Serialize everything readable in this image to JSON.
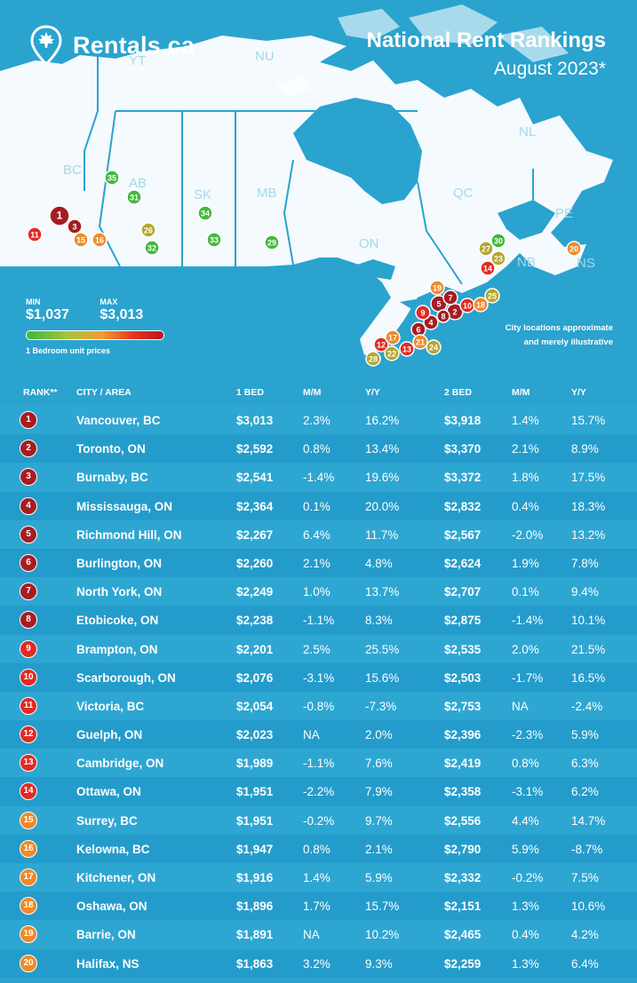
{
  "brand": {
    "name": "Rentals.ca"
  },
  "header": {
    "title": "National Rent Rankings",
    "subtitle": "August 2023*"
  },
  "colors": {
    "background": "#2aa3cf",
    "land": "#ffffff",
    "tier_red_dark": "#a51d22",
    "tier_red": "#e02b24",
    "tier_orange": "#f08a28",
    "tier_olive": "#b3a82d",
    "tier_green": "#42b83c"
  },
  "map": {
    "provinces": [
      "YT",
      "NU",
      "BC",
      "AB",
      "SK",
      "MB",
      "ON",
      "QC",
      "NL",
      "PE",
      "NB",
      "NS"
    ],
    "markers": [
      {
        "rank": 1,
        "tier": "tier_red_dark"
      },
      {
        "rank": 2,
        "tier": "tier_red_dark"
      },
      {
        "rank": 3,
        "tier": "tier_red_dark"
      },
      {
        "rank": 4,
        "tier": "tier_red_dark"
      },
      {
        "rank": 5,
        "tier": "tier_red_dark"
      },
      {
        "rank": 6,
        "tier": "tier_red_dark"
      },
      {
        "rank": 7,
        "tier": "tier_red_dark"
      },
      {
        "rank": 8,
        "tier": "tier_red_dark"
      },
      {
        "rank": 9,
        "tier": "tier_red"
      },
      {
        "rank": 10,
        "tier": "tier_red"
      },
      {
        "rank": 11,
        "tier": "tier_red"
      },
      {
        "rank": 12,
        "tier": "tier_red"
      },
      {
        "rank": 13,
        "tier": "tier_red"
      },
      {
        "rank": 14,
        "tier": "tier_red"
      },
      {
        "rank": 15,
        "tier": "tier_orange"
      },
      {
        "rank": 16,
        "tier": "tier_orange"
      },
      {
        "rank": 17,
        "tier": "tier_orange"
      },
      {
        "rank": 18,
        "tier": "tier_orange"
      },
      {
        "rank": 19,
        "tier": "tier_orange"
      },
      {
        "rank": 20,
        "tier": "tier_orange"
      },
      {
        "rank": 21,
        "tier": "tier_orange"
      },
      {
        "rank": 22,
        "tier": "tier_olive"
      },
      {
        "rank": 23,
        "tier": "tier_olive"
      },
      {
        "rank": 24,
        "tier": "tier_olive"
      },
      {
        "rank": 25,
        "tier": "tier_olive"
      },
      {
        "rank": 26,
        "tier": "tier_olive"
      },
      {
        "rank": 27,
        "tier": "tier_olive"
      },
      {
        "rank": 28,
        "tier": "tier_olive"
      },
      {
        "rank": 29,
        "tier": "tier_green"
      },
      {
        "rank": 30,
        "tier": "tier_green"
      },
      {
        "rank": 31,
        "tier": "tier_green"
      },
      {
        "rank": 32,
        "tier": "tier_green"
      },
      {
        "rank": 33,
        "tier": "tier_green"
      },
      {
        "rank": 34,
        "tier": "tier_green"
      },
      {
        "rank": 35,
        "tier": "tier_green"
      }
    ]
  },
  "legend": {
    "min_label": "MIN",
    "min_value": "$1,037",
    "max_label": "MAX",
    "max_value": "$3,013",
    "caption": "1 Bedroom unit prices"
  },
  "note": {
    "line1": "City locations approximate",
    "line2": "and merely illustrative"
  },
  "table": {
    "headers": {
      "rank": "RANK**",
      "city": "CITY / AREA",
      "bed1": "1 BED",
      "mm1": "M/M",
      "yy1": "Y/Y",
      "bed2": "2 BED",
      "mm2": "M/M",
      "yy2": "Y/Y"
    },
    "rows": [
      {
        "rank": "1",
        "city": "Vancouver, BC",
        "bed1": "$3,013",
        "mm1": "2.3%",
        "yy1": "16.2%",
        "bed2": "$3,918",
        "mm2": "1.4%",
        "yy2": "15.7%",
        "tier": "tier_red_dark"
      },
      {
        "rank": "2",
        "city": "Toronto, ON",
        "bed1": "$2,592",
        "mm1": "0.8%",
        "yy1": "13.4%",
        "bed2": "$3,370",
        "mm2": "2.1%",
        "yy2": "8.9%",
        "tier": "tier_red_dark"
      },
      {
        "rank": "3",
        "city": "Burnaby, BC",
        "bed1": "$2,541",
        "mm1": "-1.4%",
        "yy1": "19.6%",
        "bed2": "$3,372",
        "mm2": "1.8%",
        "yy2": "17.5%",
        "tier": "tier_red_dark"
      },
      {
        "rank": "4",
        "city": "Mississauga, ON",
        "bed1": "$2,364",
        "mm1": "0.1%",
        "yy1": "20.0%",
        "bed2": "$2,832",
        "mm2": "0.4%",
        "yy2": "18.3%",
        "tier": "tier_red_dark"
      },
      {
        "rank": "5",
        "city": "Richmond Hill, ON",
        "bed1": "$2,267",
        "mm1": "6.4%",
        "yy1": "11.7%",
        "bed2": "$2,567",
        "mm2": "-2.0%",
        "yy2": "13.2%",
        "tier": "tier_red_dark"
      },
      {
        "rank": "6",
        "city": "Burlington, ON",
        "bed1": "$2,260",
        "mm1": "2.1%",
        "yy1": "4.8%",
        "bed2": "$2,624",
        "mm2": "1.9%",
        "yy2": "7.8%",
        "tier": "tier_red_dark"
      },
      {
        "rank": "7",
        "city": "North York, ON",
        "bed1": "$2,249",
        "mm1": "1.0%",
        "yy1": "13.7%",
        "bed2": "$2,707",
        "mm2": "0.1%",
        "yy2": "9.4%",
        "tier": "tier_red_dark"
      },
      {
        "rank": "8",
        "city": "Etobicoke, ON",
        "bed1": "$2,238",
        "mm1": "-1.1%",
        "yy1": "8.3%",
        "bed2": "$2,875",
        "mm2": "-1.4%",
        "yy2": "10.1%",
        "tier": "tier_red_dark"
      },
      {
        "rank": "9",
        "city": "Brampton, ON",
        "bed1": "$2,201",
        "mm1": "2.5%",
        "yy1": "25.5%",
        "bed2": "$2,535",
        "mm2": "2.0%",
        "yy2": "21.5%",
        "tier": "tier_red"
      },
      {
        "rank": "10",
        "city": "Scarborough, ON",
        "bed1": "$2,076",
        "mm1": "-3.1%",
        "yy1": "15.6%",
        "bed2": "$2,503",
        "mm2": "-1.7%",
        "yy2": "16.5%",
        "tier": "tier_red"
      },
      {
        "rank": "11",
        "city": "Victoria, BC",
        "bed1": "$2,054",
        "mm1": "-0.8%",
        "yy1": "-7.3%",
        "bed2": "$2,753",
        "mm2": "NA",
        "yy2": "-2.4%",
        "tier": "tier_red"
      },
      {
        "rank": "12",
        "city": "Guelph, ON",
        "bed1": "$2,023",
        "mm1": "NA",
        "yy1": "2.0%",
        "bed2": "$2,396",
        "mm2": "-2.3%",
        "yy2": "5.9%",
        "tier": "tier_red"
      },
      {
        "rank": "13",
        "city": "Cambridge, ON",
        "bed1": "$1,989",
        "mm1": "-1.1%",
        "yy1": "7.6%",
        "bed2": "$2,419",
        "mm2": "0.8%",
        "yy2": "6.3%",
        "tier": "tier_red"
      },
      {
        "rank": "14",
        "city": "Ottawa, ON",
        "bed1": "$1,951",
        "mm1": "-2.2%",
        "yy1": "7.9%",
        "bed2": "$2,358",
        "mm2": "-3.1%",
        "yy2": "6.2%",
        "tier": "tier_red"
      },
      {
        "rank": "15",
        "city": "Surrey, BC",
        "bed1": "$1,951",
        "mm1": "-0.2%",
        "yy1": "9.7%",
        "bed2": "$2,556",
        "mm2": "4.4%",
        "yy2": "14.7%",
        "tier": "tier_orange"
      },
      {
        "rank": "16",
        "city": "Kelowna, BC",
        "bed1": "$1,947",
        "mm1": "0.8%",
        "yy1": "2.1%",
        "bed2": "$2,790",
        "mm2": "5.9%",
        "yy2": "-8.7%",
        "tier": "tier_orange"
      },
      {
        "rank": "17",
        "city": "Kitchener, ON",
        "bed1": "$1,916",
        "mm1": "1.4%",
        "yy1": "5.9%",
        "bed2": "$2,332",
        "mm2": "-0.2%",
        "yy2": "7.5%",
        "tier": "tier_orange"
      },
      {
        "rank": "18",
        "city": "Oshawa, ON",
        "bed1": "$1,896",
        "mm1": "1.7%",
        "yy1": "15.7%",
        "bed2": "$2,151",
        "mm2": "1.3%",
        "yy2": "10.6%",
        "tier": "tier_orange"
      },
      {
        "rank": "19",
        "city": "Barrie, ON",
        "bed1": "$1,891",
        "mm1": "NA",
        "yy1": "10.2%",
        "bed2": "$2,465",
        "mm2": "0.4%",
        "yy2": "4.2%",
        "tier": "tier_orange"
      },
      {
        "rank": "20",
        "city": "Halifax, NS",
        "bed1": "$1,863",
        "mm1": "3.2%",
        "yy1": "9.3%",
        "bed2": "$2,259",
        "mm2": "1.3%",
        "yy2": "6.4%",
        "tier": "tier_orange"
      }
    ]
  }
}
